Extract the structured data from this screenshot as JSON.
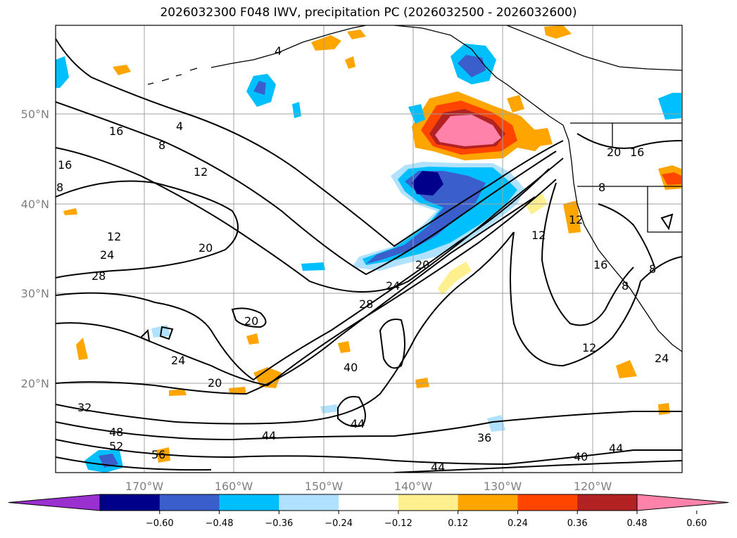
{
  "title": "2026032300 F048 IWV, precipitation PC (2026032500 - 2026032600)",
  "map": {
    "lon_labels": [
      "170°W",
      "160°W",
      "150°W",
      "140°W",
      "130°W",
      "120°W"
    ],
    "lat_labels": [
      "50°N",
      "40°N",
      "30°N",
      "20°N"
    ],
    "contour_labels": [
      "16",
      "8",
      "4",
      "12",
      "16",
      "8",
      "12",
      "24",
      "28",
      "20",
      "20",
      "24",
      "20",
      "32",
      "48",
      "52",
      "56",
      "44",
      "40",
      "44",
      "36",
      "28",
      "24",
      "20",
      "12",
      "12",
      "16",
      "8",
      "8",
      "20",
      "16",
      "8",
      "12",
      "24",
      "40",
      "44",
      "4"
    ]
  },
  "colorbar": {
    "ticks": [
      "−0.60",
      "−0.48",
      "−0.36",
      "−0.24",
      "−0.12",
      "0.12",
      "0.24",
      "0.36",
      "0.48",
      "0.60"
    ],
    "colors": [
      "#9b30d0",
      "#00008b",
      "#3a5fcd",
      "#00bfff",
      "#b0e2ff",
      "#ffffff",
      "#fff08f",
      "#ffa500",
      "#ff4500",
      "#b22222",
      "#ff82ab"
    ]
  }
}
